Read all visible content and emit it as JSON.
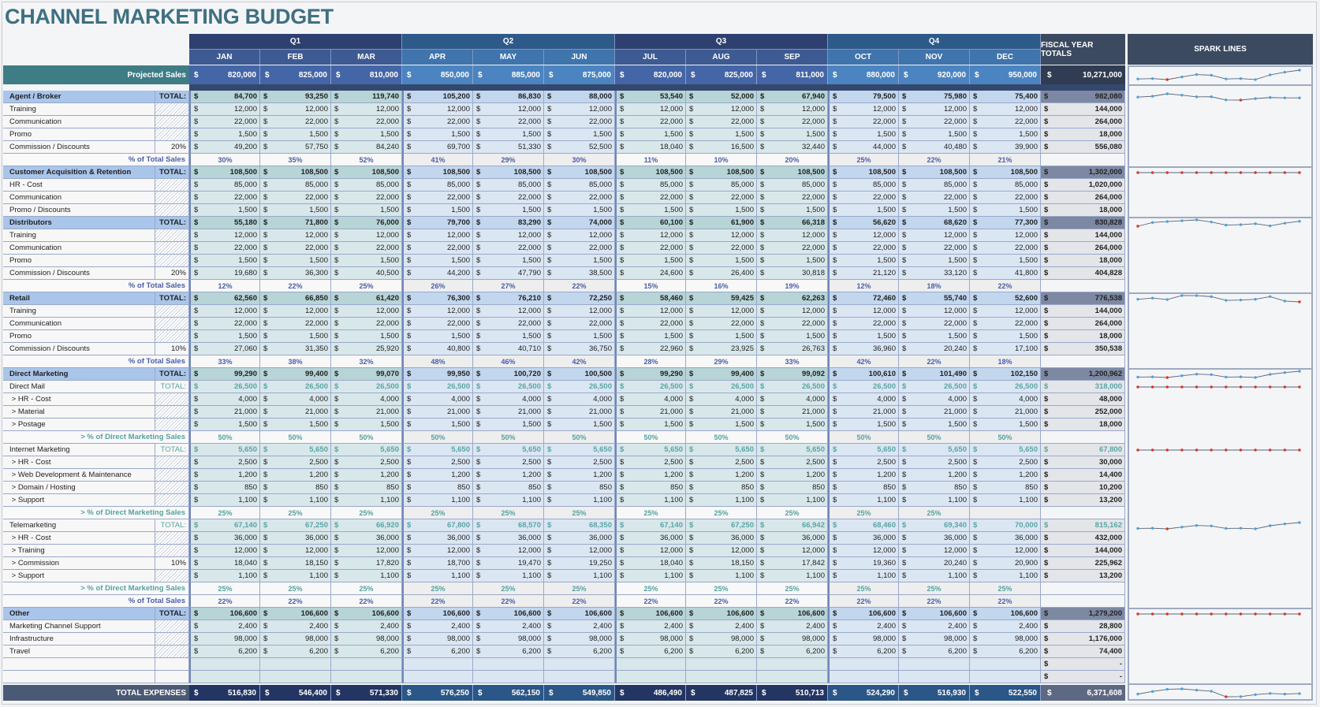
{
  "title": "CHANNEL MARKETING BUDGET",
  "quarters": [
    "Q1",
    "Q2",
    "Q3",
    "Q4"
  ],
  "months": [
    "JAN",
    "FEB",
    "MAR",
    "APR",
    "MAY",
    "JUN",
    "JUL",
    "AUG",
    "SEP",
    "OCT",
    "NOV",
    "DEC"
  ],
  "fiscal_header": "FISCAL YEAR TOTALS",
  "spark_header": "SPARK LINES",
  "currency": "$",
  "colors": {
    "title": "#3f7080",
    "header_dark": "#2d4070",
    "header_blue": "#2e5f8e",
    "spark_point": "#4aa3df",
    "spark_low": "#d9342b"
  },
  "projected": {
    "label": "Projected Sales",
    "values": [
      "820,000",
      "825,000",
      "810,000",
      "850,000",
      "885,000",
      "875,000",
      "820,000",
      "825,000",
      "811,000",
      "880,000",
      "920,000",
      "950,000"
    ],
    "total": "10,271,000"
  },
  "rows": [
    {
      "type": "section",
      "label": "Agent / Broker",
      "tag": "TOTAL:",
      "values": [
        "84,700",
        "93,250",
        "119,740",
        "105,200",
        "86,830",
        "88,000",
        "53,540",
        "52,000",
        "67,940",
        "79,500",
        "75,980",
        "75,400"
      ],
      "total": "982,080",
      "spark": true
    },
    {
      "type": "item",
      "label": "Training",
      "values": [
        "12,000",
        "12,000",
        "12,000",
        "12,000",
        "12,000",
        "12,000",
        "12,000",
        "12,000",
        "12,000",
        "12,000",
        "12,000",
        "12,000"
      ],
      "total": "144,000"
    },
    {
      "type": "item",
      "label": "Communication",
      "values": [
        "22,000",
        "22,000",
        "22,000",
        "22,000",
        "22,000",
        "22,000",
        "22,000",
        "22,000",
        "22,000",
        "22,000",
        "22,000",
        "22,000"
      ],
      "total": "264,000"
    },
    {
      "type": "item",
      "label": "Promo",
      "values": [
        "1,500",
        "1,500",
        "1,500",
        "1,500",
        "1,500",
        "1,500",
        "1,500",
        "1,500",
        "1,500",
        "1,500",
        "1,500",
        "1,500"
      ],
      "total": "18,000"
    },
    {
      "type": "item",
      "label": "Commission / Discounts",
      "tag": "20%",
      "values": [
        "49,200",
        "57,750",
        "84,240",
        "69,700",
        "51,330",
        "52,500",
        "18,040",
        "16,500",
        "32,440",
        "44,000",
        "40,480",
        "39,900"
      ],
      "total": "556,080"
    },
    {
      "type": "pct",
      "label": "% of Total Sales",
      "values": [
        "30%",
        "35%",
        "52%",
        "41%",
        "29%",
        "30%",
        "11%",
        "10%",
        "20%",
        "25%",
        "22%",
        "21%"
      ]
    },
    {
      "type": "section",
      "label": "Customer Acquisition & Retention",
      "tag": "TOTAL:",
      "values": [
        "108,500",
        "108,500",
        "108,500",
        "108,500",
        "108,500",
        "108,500",
        "108,500",
        "108,500",
        "108,500",
        "108,500",
        "108,500",
        "108,500"
      ],
      "total": "1,302,000",
      "spark": true
    },
    {
      "type": "item",
      "label": "HR - Cost",
      "values": [
        "85,000",
        "85,000",
        "85,000",
        "85,000",
        "85,000",
        "85,000",
        "85,000",
        "85,000",
        "85,000",
        "85,000",
        "85,000",
        "85,000"
      ],
      "total": "1,020,000"
    },
    {
      "type": "item",
      "label": "Communication",
      "values": [
        "22,000",
        "22,000",
        "22,000",
        "22,000",
        "22,000",
        "22,000",
        "22,000",
        "22,000",
        "22,000",
        "22,000",
        "22,000",
        "22,000"
      ],
      "total": "264,000"
    },
    {
      "type": "item",
      "label": "Promo / Discounts",
      "values": [
        "1,500",
        "1,500",
        "1,500",
        "1,500",
        "1,500",
        "1,500",
        "1,500",
        "1,500",
        "1,500",
        "1,500",
        "1,500",
        "1,500"
      ],
      "total": "18,000"
    },
    {
      "type": "section",
      "label": "Distributors",
      "tag": "TOTAL:",
      "values": [
        "55,180",
        "71,800",
        "76,000",
        "79,700",
        "83,290",
        "74,000",
        "60,100",
        "61,900",
        "66,318",
        "56,620",
        "68,620",
        "77,300"
      ],
      "total": "830,828",
      "spark": true
    },
    {
      "type": "item",
      "label": "Training",
      "values": [
        "12,000",
        "12,000",
        "12,000",
        "12,000",
        "12,000",
        "12,000",
        "12,000",
        "12,000",
        "12,000",
        "12,000",
        "12,000",
        "12,000"
      ],
      "total": "144,000"
    },
    {
      "type": "item",
      "label": "Communication",
      "values": [
        "22,000",
        "22,000",
        "22,000",
        "22,000",
        "22,000",
        "22,000",
        "22,000",
        "22,000",
        "22,000",
        "22,000",
        "22,000",
        "22,000"
      ],
      "total": "264,000"
    },
    {
      "type": "item",
      "label": "Promo",
      "values": [
        "1,500",
        "1,500",
        "1,500",
        "1,500",
        "1,500",
        "1,500",
        "1,500",
        "1,500",
        "1,500",
        "1,500",
        "1,500",
        "1,500"
      ],
      "total": "18,000"
    },
    {
      "type": "item",
      "label": "Commission / Discounts",
      "tag": "20%",
      "values": [
        "19,680",
        "36,300",
        "40,500",
        "44,200",
        "47,790",
        "38,500",
        "24,600",
        "26,400",
        "30,818",
        "21,120",
        "33,120",
        "41,800"
      ],
      "total": "404,828"
    },
    {
      "type": "pct",
      "label": "% of Total Sales",
      "values": [
        "12%",
        "22%",
        "25%",
        "26%",
        "27%",
        "22%",
        "15%",
        "16%",
        "19%",
        "12%",
        "18%",
        "22%"
      ]
    },
    {
      "type": "section",
      "label": "Retail",
      "tag": "TOTAL:",
      "values": [
        "62,560",
        "66,850",
        "61,420",
        "76,300",
        "76,210",
        "72,250",
        "58,460",
        "59,425",
        "62,263",
        "72,460",
        "55,740",
        "52,600"
      ],
      "total": "776,538",
      "spark": true
    },
    {
      "type": "item",
      "label": "Training",
      "values": [
        "12,000",
        "12,000",
        "12,000",
        "12,000",
        "12,000",
        "12,000",
        "12,000",
        "12,000",
        "12,000",
        "12,000",
        "12,000",
        "12,000"
      ],
      "total": "144,000"
    },
    {
      "type": "item",
      "label": "Communication",
      "values": [
        "22,000",
        "22,000",
        "22,000",
        "22,000",
        "22,000",
        "22,000",
        "22,000",
        "22,000",
        "22,000",
        "22,000",
        "22,000",
        "22,000"
      ],
      "total": "264,000"
    },
    {
      "type": "item",
      "label": "Promo",
      "values": [
        "1,500",
        "1,500",
        "1,500",
        "1,500",
        "1,500",
        "1,500",
        "1,500",
        "1,500",
        "1,500",
        "1,500",
        "1,500",
        "1,500"
      ],
      "total": "18,000"
    },
    {
      "type": "item",
      "label": "Commission / Discounts",
      "tag": "10%",
      "values": [
        "27,060",
        "31,350",
        "25,920",
        "40,800",
        "40,710",
        "36,750",
        "22,960",
        "23,925",
        "26,763",
        "36,960",
        "20,240",
        "17,100"
      ],
      "total": "350,538"
    },
    {
      "type": "pct",
      "label": "% of Total Sales",
      "values": [
        "33%",
        "38%",
        "32%",
        "48%",
        "46%",
        "42%",
        "28%",
        "29%",
        "33%",
        "42%",
        "22%",
        "18%"
      ]
    },
    {
      "type": "section",
      "label": "Direct Marketing",
      "tag": "TOTAL:",
      "values": [
        "99,290",
        "99,400",
        "99,070",
        "99,950",
        "100,720",
        "100,500",
        "99,290",
        "99,400",
        "99,092",
        "100,610",
        "101,490",
        "102,150"
      ],
      "total": "1,200,962",
      "spark": true
    },
    {
      "type": "subtotal",
      "label": "Direct Mail",
      "tag": "TOTAL:",
      "values": [
        "26,500",
        "26,500",
        "26,500",
        "26,500",
        "26,500",
        "26,500",
        "26,500",
        "26,500",
        "26,500",
        "26,500",
        "26,500",
        "26,500"
      ],
      "total": "318,000",
      "spark": true
    },
    {
      "type": "item",
      "label": " > HR - Cost",
      "values": [
        "4,000",
        "4,000",
        "4,000",
        "4,000",
        "4,000",
        "4,000",
        "4,000",
        "4,000",
        "4,000",
        "4,000",
        "4,000",
        "4,000"
      ],
      "total": "48,000"
    },
    {
      "type": "item",
      "label": " > Material",
      "values": [
        "21,000",
        "21,000",
        "21,000",
        "21,000",
        "21,000",
        "21,000",
        "21,000",
        "21,000",
        "21,000",
        "21,000",
        "21,000",
        "21,000"
      ],
      "total": "252,000"
    },
    {
      "type": "item",
      "label": " > Postage",
      "values": [
        "1,500",
        "1,500",
        "1,500",
        "1,500",
        "1,500",
        "1,500",
        "1,500",
        "1,500",
        "1,500",
        "1,500",
        "1,500",
        "1,500"
      ],
      "total": "18,000"
    },
    {
      "type": "pct",
      "dm": true,
      "label": "> % of Direct Marketing Sales",
      "values": [
        "50%",
        "50%",
        "50%",
        "50%",
        "50%",
        "50%",
        "50%",
        "50%",
        "50%",
        "50%",
        "50%",
        "50%"
      ]
    },
    {
      "type": "subtotal",
      "label": "Internet Marketing",
      "tag": "TOTAL:",
      "values": [
        "5,650",
        "5,650",
        "5,650",
        "5,650",
        "5,650",
        "5,650",
        "5,650",
        "5,650",
        "5,650",
        "5,650",
        "5,650",
        "5,650"
      ],
      "total": "67,800",
      "spark": true
    },
    {
      "type": "item",
      "label": " > HR - Cost",
      "values": [
        "2,500",
        "2,500",
        "2,500",
        "2,500",
        "2,500",
        "2,500",
        "2,500",
        "2,500",
        "2,500",
        "2,500",
        "2,500",
        "2,500"
      ],
      "total": "30,000"
    },
    {
      "type": "item",
      "label": " > Web Development & Maintenance",
      "values": [
        "1,200",
        "1,200",
        "1,200",
        "1,200",
        "1,200",
        "1,200",
        "1,200",
        "1,200",
        "1,200",
        "1,200",
        "1,200",
        "1,200"
      ],
      "total": "14,400"
    },
    {
      "type": "item",
      "label": " > Domain / Hosting",
      "values": [
        "850",
        "850",
        "850",
        "850",
        "850",
        "850",
        "850",
        "850",
        "850",
        "850",
        "850",
        "850"
      ],
      "total": "10,200"
    },
    {
      "type": "item",
      "label": " > Support",
      "values": [
        "1,100",
        "1,100",
        "1,100",
        "1,100",
        "1,100",
        "1,100",
        "1,100",
        "1,100",
        "1,100",
        "1,100",
        "1,100",
        "1,100"
      ],
      "total": "13,200"
    },
    {
      "type": "pct",
      "dm": true,
      "label": "> % of Direct Marketing Sales",
      "values": [
        "25%",
        "25%",
        "25%",
        "25%",
        "25%",
        "25%",
        "25%",
        "25%",
        "25%",
        "25%",
        "25%",
        ""
      ]
    },
    {
      "type": "subtotal",
      "label": "Telemarketing",
      "tag": "TOTAL:",
      "values": [
        "67,140",
        "67,250",
        "66,920",
        "67,800",
        "68,570",
        "68,350",
        "67,140",
        "67,250",
        "66,942",
        "68,460",
        "69,340",
        "70,000"
      ],
      "total": "815,162",
      "spark": true
    },
    {
      "type": "item",
      "label": " > HR - Cost",
      "values": [
        "36,000",
        "36,000",
        "36,000",
        "36,000",
        "36,000",
        "36,000",
        "36,000",
        "36,000",
        "36,000",
        "36,000",
        "36,000",
        "36,000"
      ],
      "total": "432,000"
    },
    {
      "type": "item",
      "label": " > Training",
      "values": [
        "12,000",
        "12,000",
        "12,000",
        "12,000",
        "12,000",
        "12,000",
        "12,000",
        "12,000",
        "12,000",
        "12,000",
        "12,000",
        "12,000"
      ],
      "total": "144,000"
    },
    {
      "type": "item",
      "label": " > Commission",
      "tag": "10%",
      "values": [
        "18,040",
        "18,150",
        "17,820",
        "18,700",
        "19,470",
        "19,250",
        "18,040",
        "18,150",
        "17,842",
        "19,360",
        "20,240",
        "20,900"
      ],
      "total": "225,962"
    },
    {
      "type": "item",
      "label": " > Support",
      "values": [
        "1,100",
        "1,100",
        "1,100",
        "1,100",
        "1,100",
        "1,100",
        "1,100",
        "1,100",
        "1,100",
        "1,100",
        "1,100",
        "1,100"
      ],
      "total": "13,200"
    },
    {
      "type": "pct",
      "dm": true,
      "label": "> % of Direct Marketing Sales",
      "values": [
        "25%",
        "25%",
        "25%",
        "25%",
        "25%",
        "25%",
        "25%",
        "25%",
        "25%",
        "25%",
        "25%",
        "25%"
      ]
    },
    {
      "type": "pct",
      "label": "% of Total Sales",
      "values": [
        "22%",
        "22%",
        "22%",
        "22%",
        "22%",
        "22%",
        "22%",
        "22%",
        "22%",
        "22%",
        "22%",
        "22%"
      ]
    },
    {
      "type": "section",
      "label": "Other",
      "tag": "TOTAL:",
      "values": [
        "106,600",
        "106,600",
        "106,600",
        "106,600",
        "106,600",
        "106,600",
        "106,600",
        "106,600",
        "106,600",
        "106,600",
        "106,600",
        "106,600"
      ],
      "total": "1,279,200",
      "spark": true
    },
    {
      "type": "item",
      "label": "Marketing Channel Support",
      "values": [
        "2,400",
        "2,400",
        "2,400",
        "2,400",
        "2,400",
        "2,400",
        "2,400",
        "2,400",
        "2,400",
        "2,400",
        "2,400",
        "2,400"
      ],
      "total": "28,800"
    },
    {
      "type": "item",
      "label": "Infrastructure",
      "values": [
        "98,000",
        "98,000",
        "98,000",
        "98,000",
        "98,000",
        "98,000",
        "98,000",
        "98,000",
        "98,000",
        "98,000",
        "98,000",
        "98,000"
      ],
      "total": "1,176,000"
    },
    {
      "type": "item",
      "label": "Travel",
      "values": [
        "6,200",
        "6,200",
        "6,200",
        "6,200",
        "6,200",
        "6,200",
        "6,200",
        "6,200",
        "6,200",
        "6,200",
        "6,200",
        "6,200"
      ],
      "total": "74,400"
    },
    {
      "type": "blank",
      "label": "",
      "values": [
        "",
        "",
        "",
        "",
        "",
        "",
        "",
        "",
        "",
        "",
        "",
        ""
      ],
      "total": "-"
    },
    {
      "type": "blank",
      "label": "",
      "values": [
        "",
        "",
        "",
        "",
        "",
        "",
        "",
        "",
        "",
        "",
        "",
        ""
      ],
      "total": "-"
    }
  ],
  "total_expenses": {
    "label": "TOTAL EXPENSES",
    "values": [
      "516,830",
      "546,400",
      "571,330",
      "576,250",
      "562,150",
      "549,850",
      "486,490",
      "487,825",
      "510,713",
      "524,290",
      "516,930",
      "522,550"
    ],
    "total": "6,371,608"
  }
}
